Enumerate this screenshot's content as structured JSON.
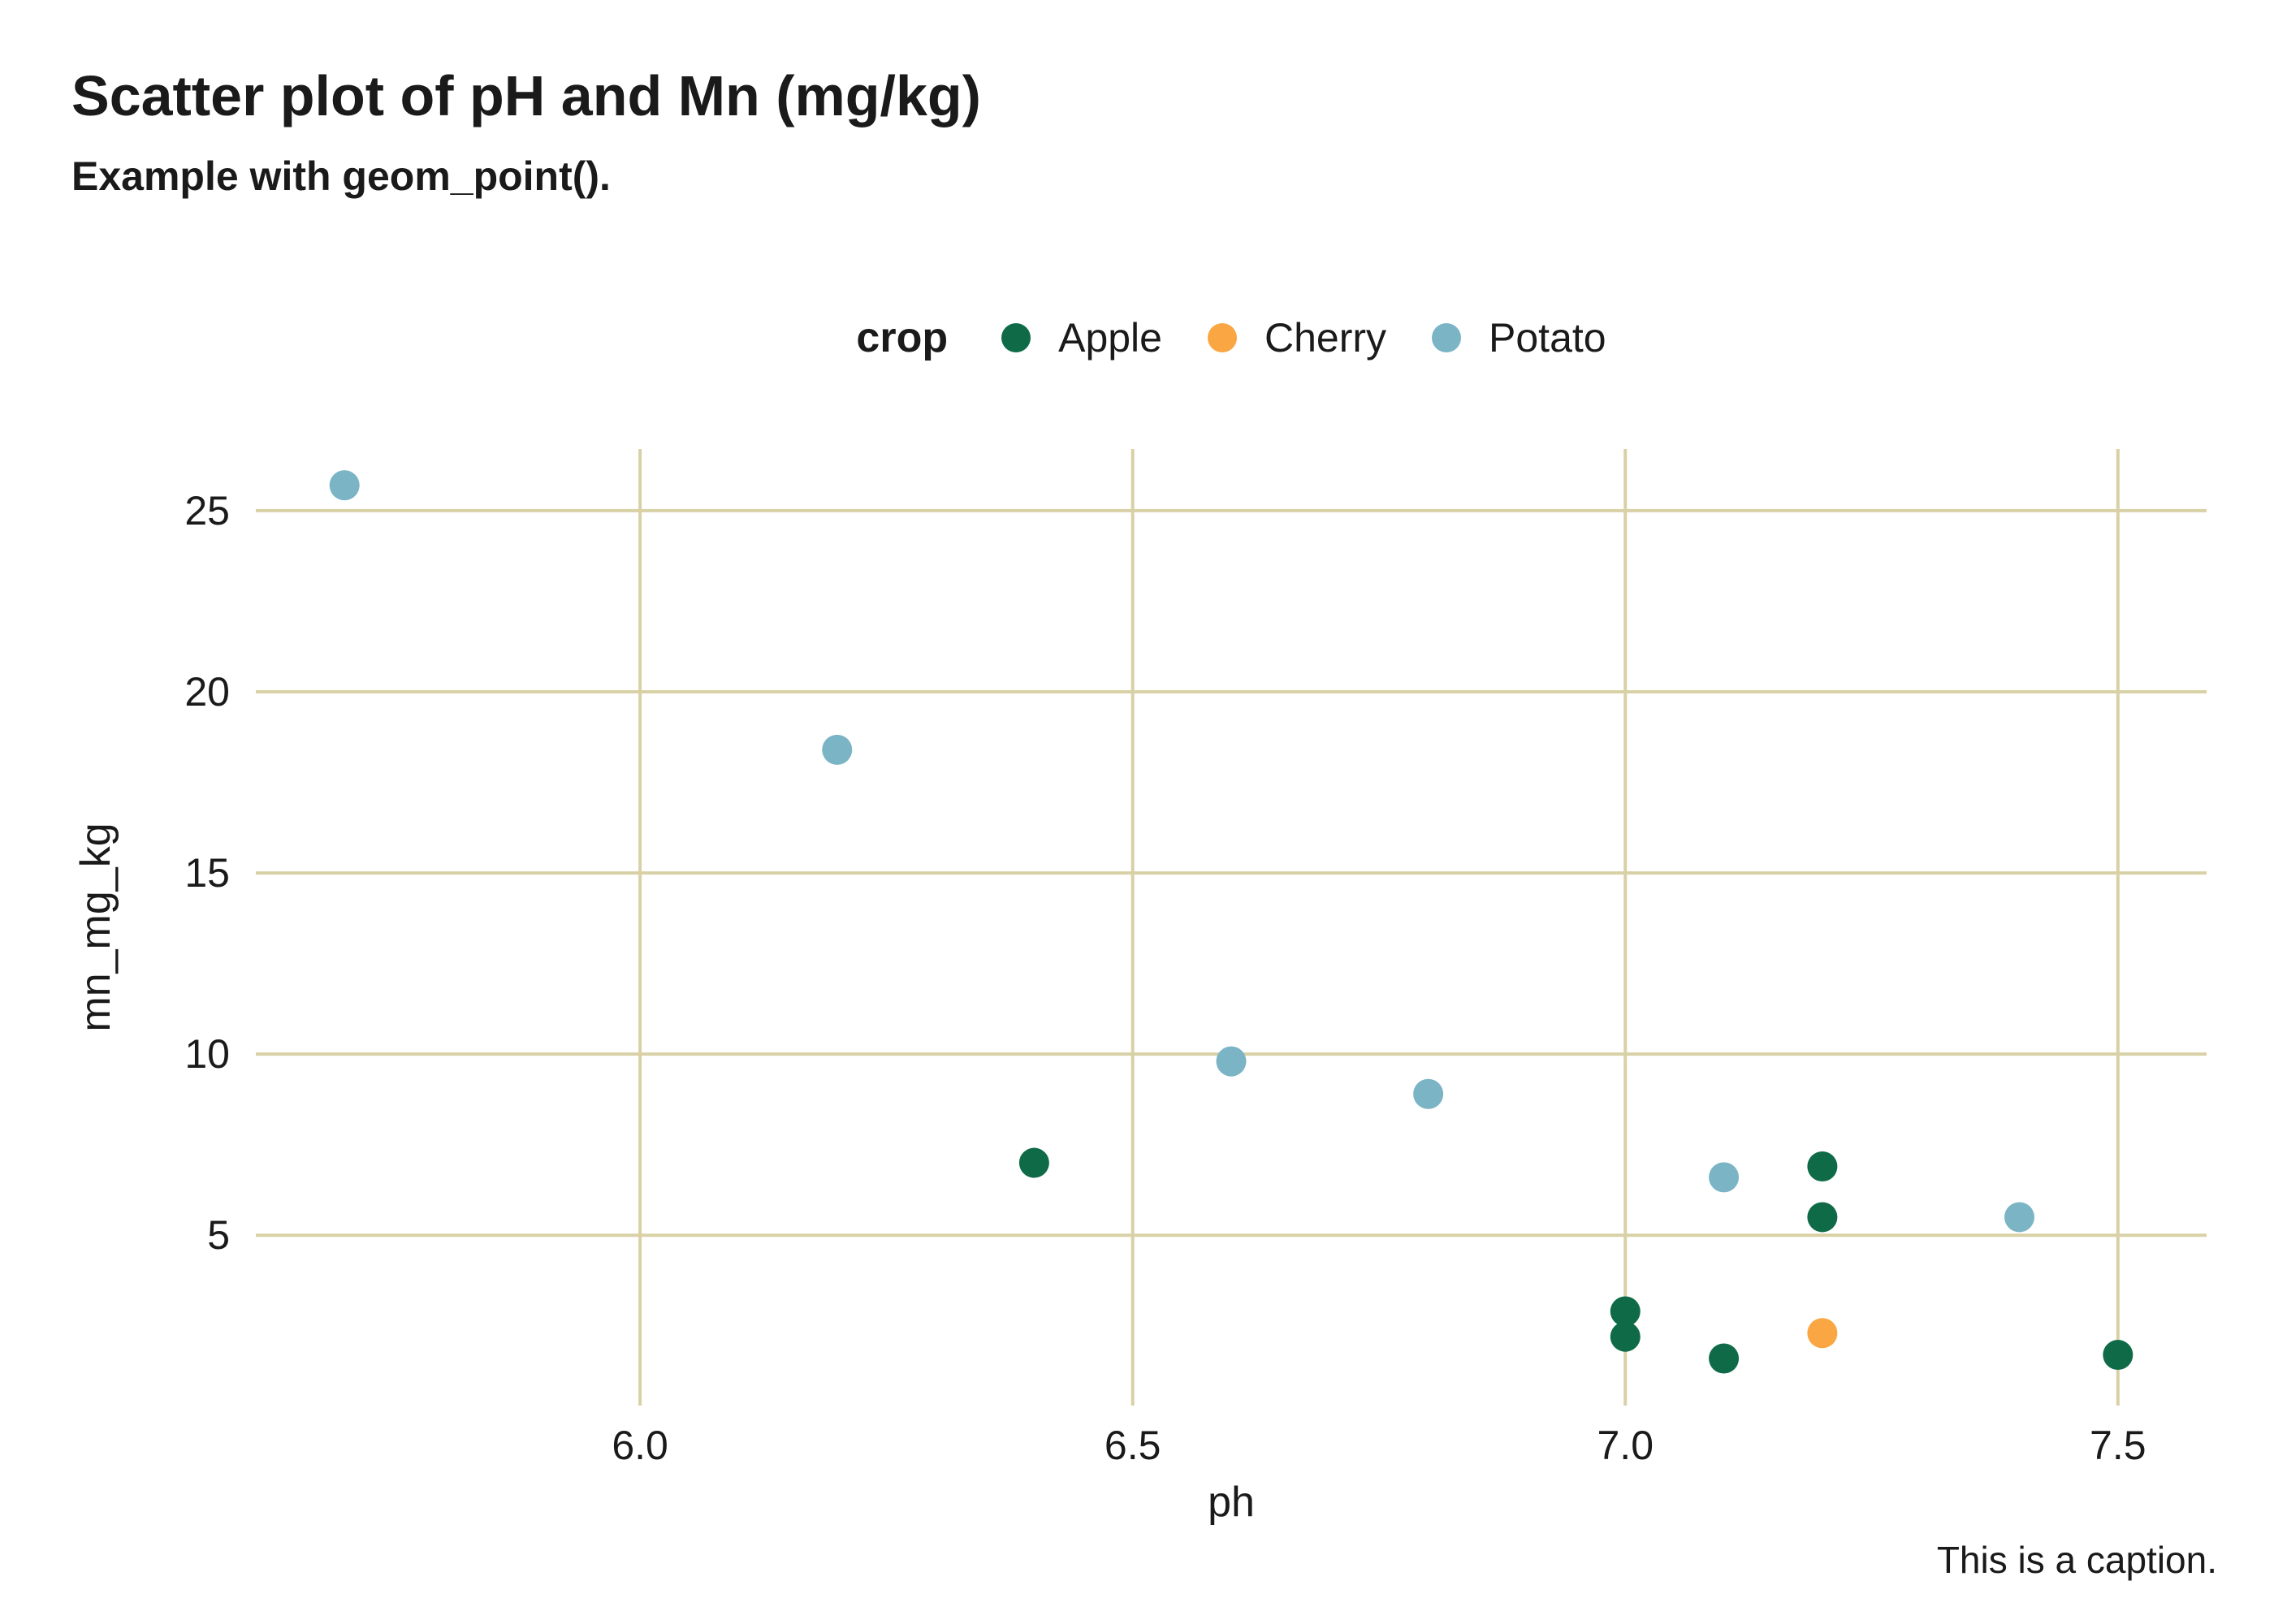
{
  "header": {
    "title": "Scatter plot of pH and Mn (mg/kg)",
    "subtitle": "Example with geom_point()."
  },
  "legend": {
    "title": "crop",
    "items": [
      {
        "label": "Apple",
        "color": "#0F6B47"
      },
      {
        "label": "Cherry",
        "color": "#F9A643"
      },
      {
        "label": "Potato",
        "color": "#7AB4C5"
      }
    ]
  },
  "axes": {
    "x_title": "ph",
    "y_title": "mn_mg_kg"
  },
  "caption": "This is a caption.",
  "colors": {
    "background": "#FFFFFF",
    "gridline": "#D9D1A6",
    "text": "#1A1A1A"
  },
  "chart_data": {
    "type": "scatter",
    "title": "Scatter plot of pH and Mn (mg/kg)",
    "subtitle": "Example with geom_point().",
    "xlabel": "ph",
    "ylabel": "mn_mg_kg",
    "xlim": [
      5.61,
      7.59
    ],
    "ylim": [
      0.3,
      26.7
    ],
    "x_ticks": [
      6.0,
      6.5,
      7.0,
      7.5
    ],
    "x_tick_labels": [
      "6.0",
      "6.5",
      "7.0",
      "7.5"
    ],
    "y_ticks": [
      5,
      10,
      15,
      20,
      25
    ],
    "y_tick_labels": [
      "5",
      "10",
      "15",
      "20",
      "25"
    ],
    "grid": "major-only",
    "legend_position": "top-center",
    "point_radius": 18.5,
    "series": [
      {
        "name": "Apple",
        "color": "#0F6B47",
        "points": [
          [
            6.4,
            7.0
          ],
          [
            7.0,
            2.9
          ],
          [
            7.0,
            2.2
          ],
          [
            7.1,
            1.6
          ],
          [
            7.2,
            6.9
          ],
          [
            7.2,
            5.5
          ],
          [
            7.5,
            1.7
          ]
        ]
      },
      {
        "name": "Cherry",
        "color": "#F9A643",
        "points": [
          [
            7.2,
            2.3
          ]
        ]
      },
      {
        "name": "Potato",
        "color": "#7AB4C5",
        "points": [
          [
            5.7,
            25.7
          ],
          [
            6.2,
            18.4
          ],
          [
            6.6,
            9.8
          ],
          [
            6.8,
            8.9
          ],
          [
            7.1,
            6.6
          ],
          [
            7.4,
            5.5
          ]
        ]
      }
    ]
  }
}
